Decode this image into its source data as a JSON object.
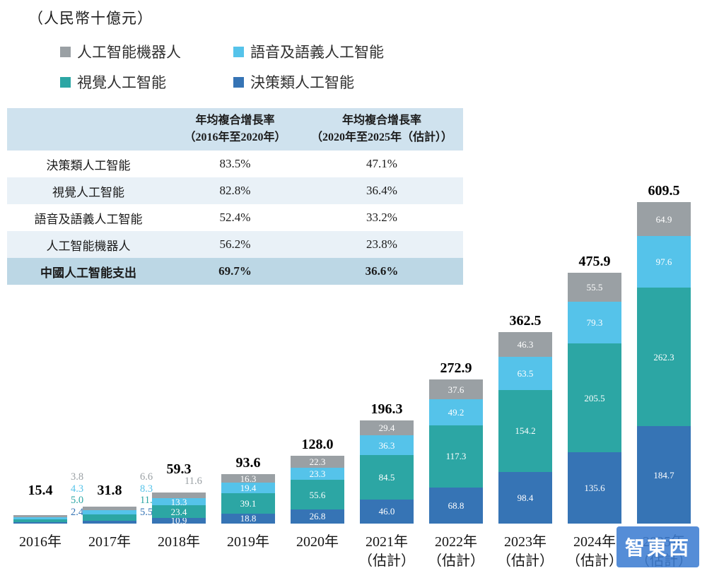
{
  "unit_label": "（人民幣十億元）",
  "watermark": "智東西",
  "table": {
    "headers": [
      "",
      "年均複合增長率\n（2016年至2020年）",
      "年均複合增長率\n（2020年至2025年（估計））"
    ],
    "rows": [
      {
        "name": "決策類人工智能",
        "cagr_2016_2020": "83.5%",
        "cagr_2020_2025": "47.1%"
      },
      {
        "name": "視覺人工智能",
        "cagr_2016_2020": "82.8%",
        "cagr_2020_2025": "36.4%"
      },
      {
        "name": "語音及語義人工智能",
        "cagr_2016_2020": "52.4%",
        "cagr_2020_2025": "33.2%"
      },
      {
        "name": "人工智能機器人",
        "cagr_2016_2020": "56.2%",
        "cagr_2020_2025": "23.8%"
      },
      {
        "name": "中國人工智能支出",
        "cagr_2016_2020": "69.7%",
        "cagr_2020_2025": "36.6%"
      }
    ]
  },
  "chart_data": {
    "type": "bar",
    "stacked": true,
    "unit": "人民幣十億元",
    "estimate_suffix": "（估計）",
    "categories": [
      "2016年",
      "2017年",
      "2018年",
      "2019年",
      "2020年",
      "2021年（估計）",
      "2022年（估計）",
      "2023年（估計）",
      "2024年（估計）",
      "2025年（估計）"
    ],
    "series": [
      {
        "name": "人工智能機器人",
        "color": "#9aa0a4",
        "values": [
          3.8,
          6.6,
          11.6,
          16.3,
          22.3,
          29.4,
          37.6,
          46.3,
          55.5,
          64.9
        ]
      },
      {
        "name": "語音及語義人工智能",
        "color": "#55c3ea",
        "values": [
          4.3,
          8.3,
          13.3,
          19.4,
          23.3,
          36.3,
          49.2,
          63.5,
          79.3,
          97.6
        ]
      },
      {
        "name": "視覺人工智能",
        "color": "#2ca6a4",
        "values": [
          5.0,
          11.4,
          23.4,
          39.1,
          55.6,
          84.5,
          117.3,
          154.2,
          205.5,
          262.3
        ]
      },
      {
        "name": "決策類人工智能",
        "color": "#3674b5",
        "values": [
          2.4,
          5.5,
          10.9,
          18.8,
          26.8,
          46.0,
          68.8,
          98.4,
          135.6,
          184.7
        ]
      }
    ],
    "totals": [
      15.4,
      31.8,
      59.3,
      93.6,
      128.0,
      196.3,
      272.9,
      362.5,
      475.9,
      609.5
    ],
    "ylim": [
      0,
      620
    ],
    "grid": false,
    "legend_position": "top-left",
    "layout": {
      "outside_label_columns": [
        0,
        1
      ],
      "partial_outside": {
        "2": [
          0
        ]
      }
    }
  }
}
